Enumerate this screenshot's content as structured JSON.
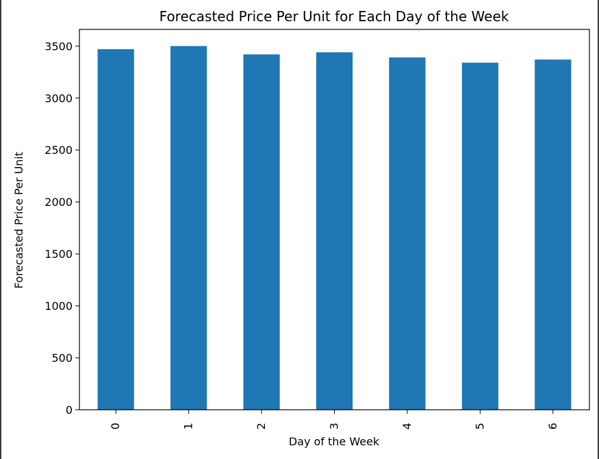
{
  "chart_data": {
    "type": "bar",
    "title": "Forecasted Price Per Unit for Each Day of the Week",
    "xlabel": "Day of the Week",
    "ylabel": "Forecasted Price Per Unit",
    "categories": [
      "0",
      "1",
      "2",
      "3",
      "4",
      "5",
      "6"
    ],
    "values": [
      3470,
      3500,
      3420,
      3440,
      3390,
      3340,
      3370
    ],
    "ylim": [
      0,
      3660
    ],
    "yticks": [
      0,
      500,
      1000,
      1500,
      2000,
      2500,
      3000,
      3500
    ],
    "ytick_labels": [
      "0",
      "500",
      "1000",
      "1500",
      "2000",
      "2500",
      "3000",
      "3500"
    ],
    "xtick_rotation": "vertical",
    "grid": false,
    "bar_color": "#1f77b4"
  }
}
